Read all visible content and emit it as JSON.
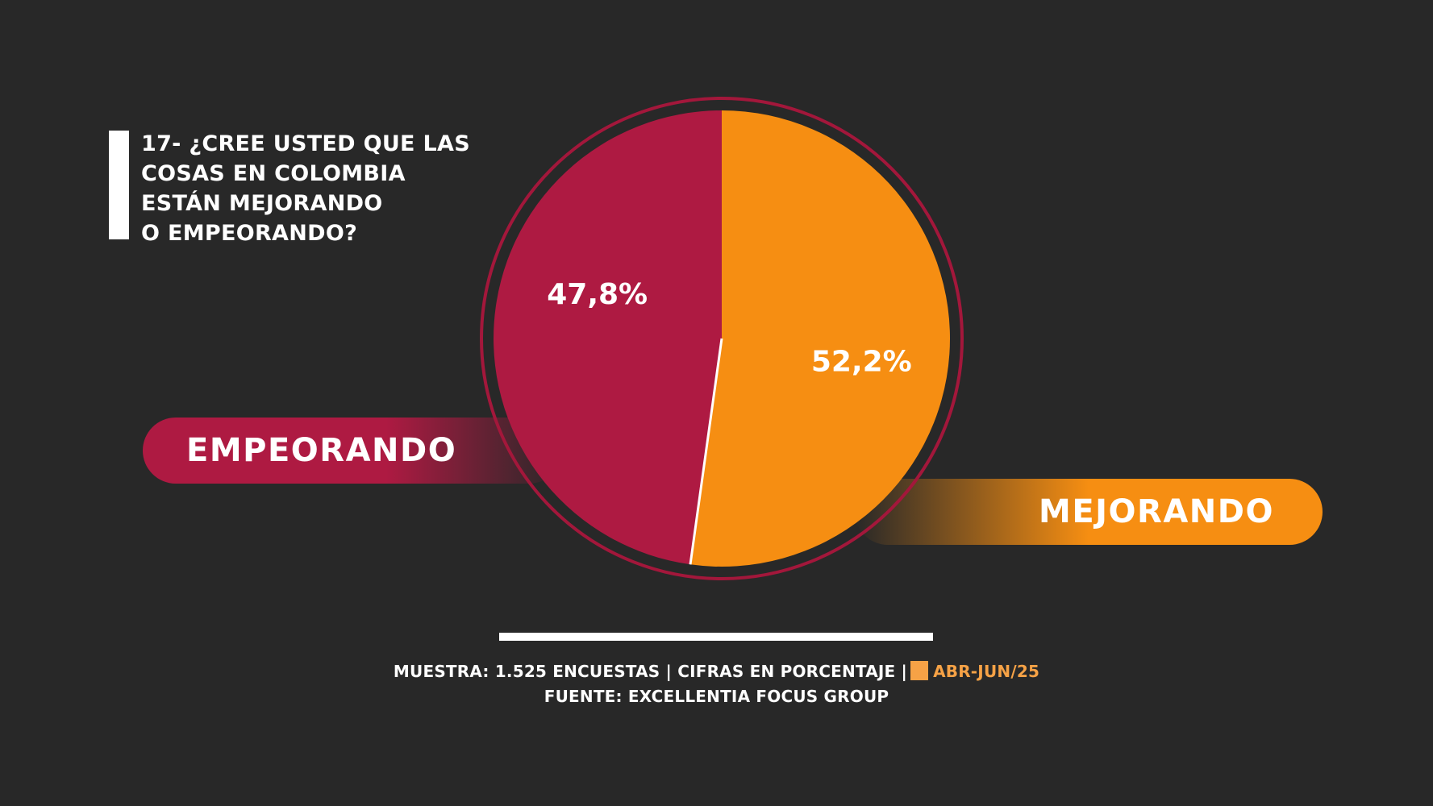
{
  "title_lines": [
    "17- ¿CREE USTED QUE LAS",
    "COSAS EN COLOMBIA",
    "ESTÁN MEJORANDO",
    "O EMPEORANDO?"
  ],
  "chart_data": {
    "type": "pie",
    "slices": [
      {
        "label": "MEJORANDO",
        "value": 52.2,
        "value_label": "52,2%",
        "color": "#f68e12"
      },
      {
        "label": "EMPEORANDO",
        "value": 47.8,
        "value_label": "47,8%",
        "color": "#ae1a42"
      }
    ]
  },
  "footer": {
    "line1": "MUESTRA: 1.525 ENCUESTAS | CIFRAS EN PORCENTAJE |",
    "period": "ABR-JUN/25",
    "line2": "FUENTE: EXCELLENTIA FOCUS GROUP"
  },
  "colors": {
    "background": "#282828",
    "empeorando": "#ae1a42",
    "mejorando": "#f68e12",
    "legend_swatch": "#f6a246"
  }
}
